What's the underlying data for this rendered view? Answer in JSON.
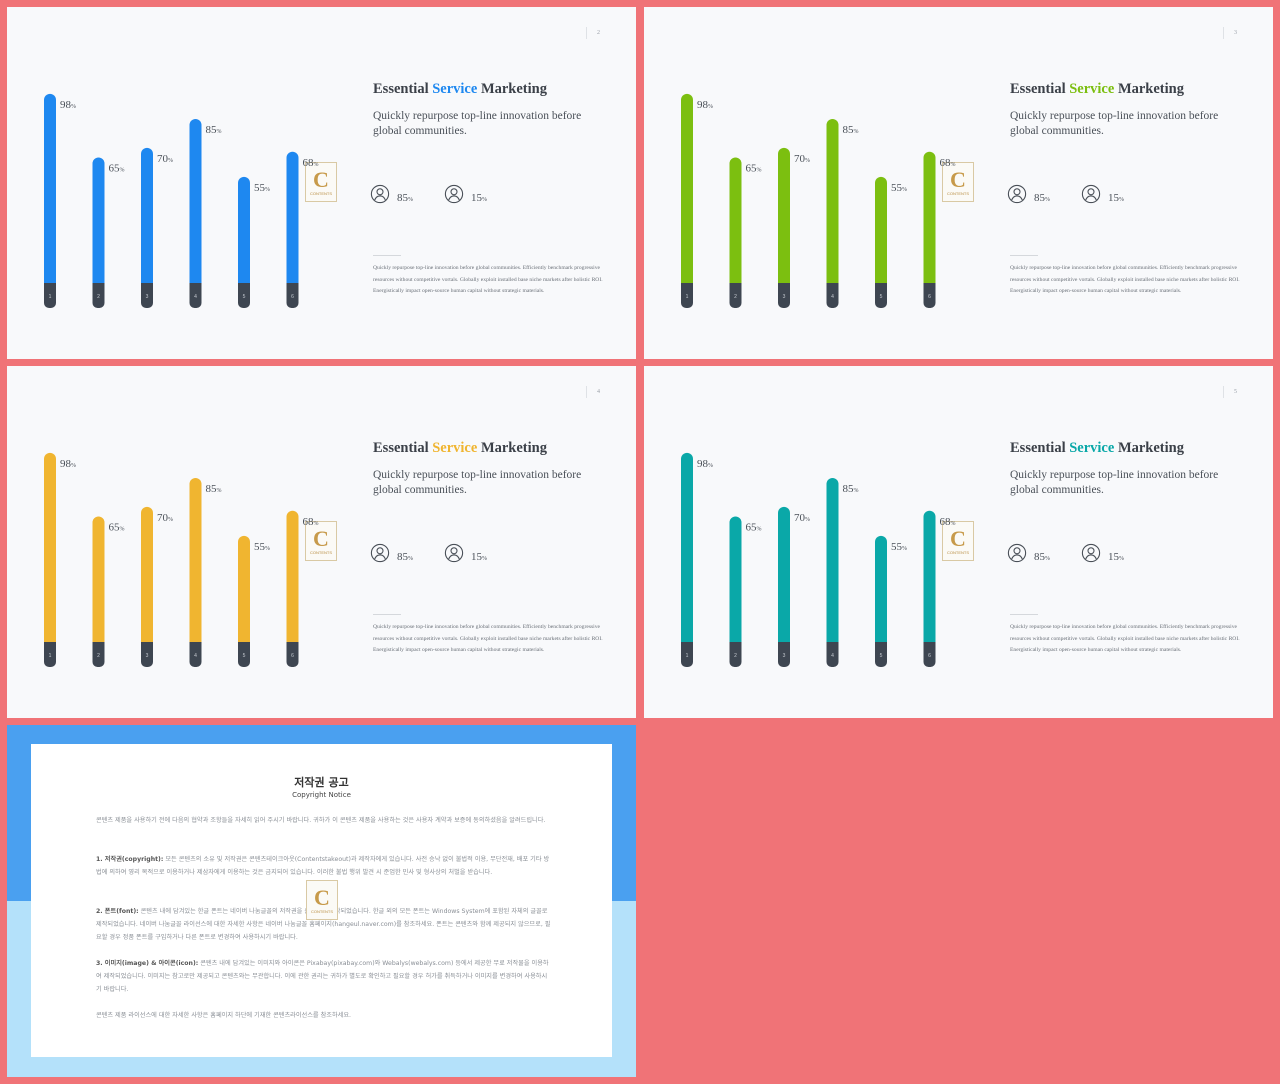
{
  "slides": [
    {
      "page_number": "2",
      "accent": "#1e88f0",
      "title": {
        "before": "Essential",
        "highlight": "Service",
        "after": "Marketing"
      },
      "subtitle": "Quickly repurpose top-line innovation before global communities.",
      "stats": [
        {
          "icon": "person-icon",
          "value": "85",
          "unit": "%"
        },
        {
          "icon": "person-icon",
          "value": "15",
          "unit": "%"
        }
      ],
      "body": "Quickly repurpose top-line innovation before global communities. Efficiently benchmark progressive resources without competitive vortals. Globally exploit installed base niche markets after holistic ROI. Energistically impact open-source human capital without strategic materials.",
      "logo": {
        "letter": "C",
        "text": "CONTENTS"
      }
    },
    {
      "page_number": "3",
      "accent": "#7cbf10",
      "title": {
        "before": "Essential",
        "highlight": "Service",
        "after": "Marketing"
      },
      "subtitle": "Quickly repurpose top-line innovation before global communities.",
      "stats": [
        {
          "icon": "person-icon",
          "value": "85",
          "unit": "%"
        },
        {
          "icon": "person-icon",
          "value": "15",
          "unit": "%"
        }
      ],
      "body": "Quickly repurpose top-line innovation before global communities. Efficiently benchmark progressive resources without competitive vortals. Globally exploit installed base niche markets after holistic ROI. Energistically impact open-source human capital without strategic materials.",
      "logo": {
        "letter": "C",
        "text": "CONTENTS"
      }
    },
    {
      "page_number": "4",
      "accent": "#f0b530",
      "title": {
        "before": "Essential",
        "highlight": "Service",
        "after": "Marketing"
      },
      "subtitle": "Quickly repurpose top-line innovation before global communities.",
      "stats": [
        {
          "icon": "person-icon",
          "value": "85",
          "unit": "%"
        },
        {
          "icon": "person-icon",
          "value": "15",
          "unit": "%"
        }
      ],
      "body": "Quickly repurpose top-line innovation before global communities. Efficiently benchmark progressive resources without competitive vortals. Globally exploit installed base niche markets after holistic ROI. Energistically impact open-source human capital without strategic materials.",
      "logo": {
        "letter": "C",
        "text": "CONTENTS"
      }
    },
    {
      "page_number": "5",
      "accent": "#0aa8a8",
      "title": {
        "before": "Essential",
        "highlight": "Service",
        "after": "Marketing"
      },
      "subtitle": "Quickly repurpose top-line innovation before global communities.",
      "stats": [
        {
          "icon": "person-icon",
          "value": "85",
          "unit": "%"
        },
        {
          "icon": "person-icon",
          "value": "15",
          "unit": "%"
        }
      ],
      "body": "Quickly repurpose top-line innovation before global communities. Efficiently benchmark progressive resources without competitive vortals. Globally exploit installed base niche markets after holistic ROI. Energistically impact open-source human capital without strategic materials.",
      "logo": {
        "letter": "C",
        "text": "CONTENTS"
      }
    }
  ],
  "chart_data": [
    {
      "type": "bar",
      "categories": [
        "1",
        "2",
        "3",
        "4",
        "5",
        "6"
      ],
      "values": [
        98,
        65,
        70,
        85,
        55,
        68
      ],
      "unit": "%",
      "color": "#1e88f0",
      "ylim": [
        0,
        100
      ],
      "grid": false
    },
    {
      "type": "bar",
      "categories": [
        "1",
        "2",
        "3",
        "4",
        "5",
        "6"
      ],
      "values": [
        98,
        65,
        70,
        85,
        55,
        68
      ],
      "unit": "%",
      "color": "#7cbf10",
      "ylim": [
        0,
        100
      ],
      "grid": false
    },
    {
      "type": "bar",
      "categories": [
        "1",
        "2",
        "3",
        "4",
        "5",
        "6"
      ],
      "values": [
        98,
        65,
        70,
        85,
        55,
        68
      ],
      "unit": "%",
      "color": "#f0b530",
      "ylim": [
        0,
        100
      ],
      "grid": false
    },
    {
      "type": "bar",
      "categories": [
        "1",
        "2",
        "3",
        "4",
        "5",
        "6"
      ],
      "values": [
        98,
        65,
        70,
        85,
        55,
        68
      ],
      "unit": "%",
      "color": "#0aa8a8",
      "ylim": [
        0,
        100
      ],
      "grid": false
    }
  ],
  "copyright": {
    "title": "저작권 공고",
    "subtitle": "Copyright Notice",
    "intro": "콘텐츠 제품을 사용하기 전에 다음의 협약과 조항들을 자세히 읽어 주시기 바랍니다. 귀하가 이 콘텐츠 제품을 사용하는 것은 사용자 계약과 보증에 동의하셨음을 알려드립니다.",
    "sections": [
      {
        "heading": "1. 저작권(copyright):",
        "text": " 모든 콘텐츠의 소유 및 저작권은 콘텐츠테이크아웃(Contentstakeout)과 제작자에게 있습니다. 사전 승낙 없이 불법적 이용, 무단전재, 배포 기타 방법에 의하여 영리 목적으로 이용하거나 제삼자에게 이용하는 것은 금지되어 있습니다. 이러한 불법 행위 발견 시 준엄한 민사 및 형사상의 처벌을 받습니다."
      },
      {
        "heading": "2. 폰트(font):",
        "text": " 콘텐츠 내에 담겨있는 한글 폰트는 네이버 나눔글꼴의 저작권을 준수하여 제작되었습니다. 한글 외의 모든 폰트는 Windows System에 포함된 자체의 글꼴로 제작되었습니다. 네이버 나눔글꼴 라이선스에 대한 자세한 사항은 네이버 나눔글꼴 홈페이지(hangeul.naver.com)를 참조하세요. 폰트는 콘텐츠와 함께 제공되지 않으므로, 필요할 경우 정품 폰트를 구입하거나 다른 폰트로 변경하여 사용하시기 바랍니다."
      },
      {
        "heading": "3. 이미지(image) & 아이콘(icon):",
        "text": " 콘텐츠 내에 담겨있는 이미지와 아이콘은 Pixabay(pixabay.com)와 Webalys(webalys.com) 등에서 제공한 무료 저작물을 이용하여 제작되었습니다. 이미지는 참고로만 제공되고 콘텐츠와는 무관합니다. 이에 관한 권리는 귀하가 별도로 확인하고 필요할 경우 허가를 취득하거나 이미지를 변경하여 사용하시기 바랍니다."
      }
    ],
    "footer": "콘텐츠 제품 라이선스에 대한 자세한 사항은 홈페이지 하단에 기재한 콘텐츠라이선스를 참조하세요.",
    "logo": {
      "letter": "C",
      "text": "CONTENTS"
    }
  }
}
